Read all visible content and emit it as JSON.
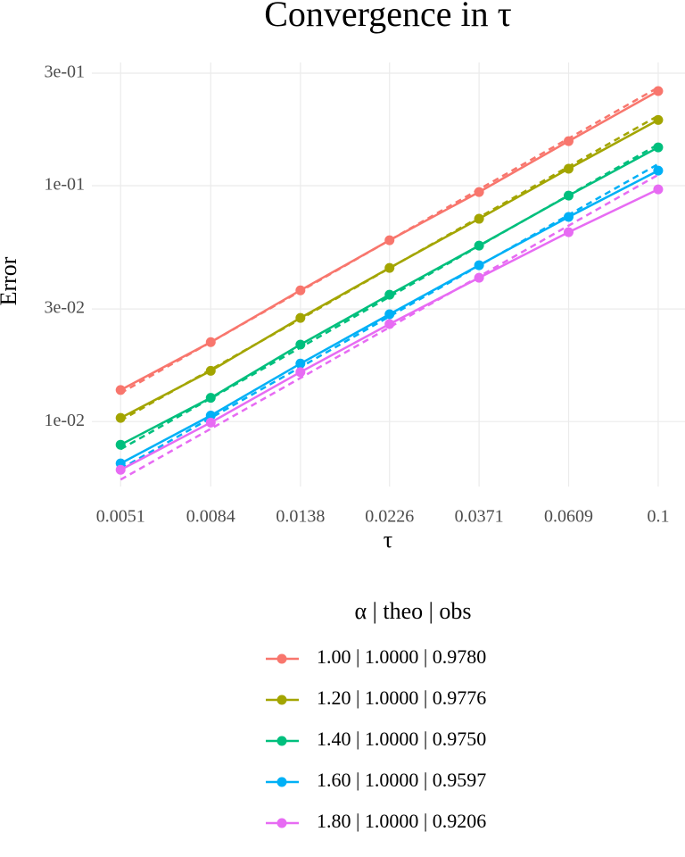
{
  "chart_data": {
    "type": "line",
    "title": "Convergence in τ",
    "x_label": "τ",
    "y_label": "Error",
    "x": [
      0.0051,
      0.0084,
      0.0138,
      0.0226,
      0.0371,
      0.0609,
      0.1
    ],
    "xscale": "log",
    "yscale": "log",
    "xlim": [
      0.00435,
      0.116
    ],
    "ylim": [
      0.0053,
      0.333
    ],
    "xticks": [
      0.0051,
      0.0084,
      0.0138,
      0.0226,
      0.0371,
      0.0609,
      0.1
    ],
    "yticks": [
      {
        "value": 0.01,
        "label": "1e-02"
      },
      {
        "value": 0.03,
        "label": "3e-02"
      },
      {
        "value": 0.1,
        "label": "1e-01"
      },
      {
        "value": 0.3,
        "label": "3e-01"
      }
    ],
    "grid": true,
    "theo_dash": "7 5",
    "legend_title": "α  | theo  | obs",
    "series": [
      {
        "name": "1.00 | 1.0000 | 0.9780",
        "color": "#F8766D",
        "values": [
          0.0136,
          0.0217,
          0.036,
          0.0587,
          0.094,
          0.1545,
          0.252
        ],
        "theo_values": [
          0.0132,
          0.0217,
          0.0357,
          0.0587,
          0.0965,
          0.1586,
          0.261
        ]
      },
      {
        "name": "1.20 | 1.0000 | 0.9776",
        "color": "#A3A500",
        "values": [
          0.01036,
          0.0164,
          0.0275,
          0.0448,
          0.0724,
          0.118,
          0.19
        ],
        "theo_values": [
          0.0101,
          0.0166,
          0.0272,
          0.0447,
          0.0734,
          0.1205,
          0.198
        ]
      },
      {
        "name": "1.40 | 1.0000 | 0.9750",
        "color": "#00BF7D",
        "values": [
          0.00797,
          0.0126,
          0.0212,
          0.0345,
          0.0557,
          0.0908,
          0.1454
        ],
        "theo_values": [
          0.00763,
          0.01253,
          0.0206,
          0.0338,
          0.0555,
          0.0911,
          0.1496
        ]
      },
      {
        "name": "1.60 | 1.0000 | 0.9597",
        "color": "#00B0F6",
        "values": [
          0.00664,
          0.0106,
          0.0176,
          0.0285,
          0.046,
          0.0737,
          0.1159
        ],
        "theo_values": [
          0.0063,
          0.01035,
          0.017,
          0.0279,
          0.0458,
          0.0752,
          0.1235
        ]
      },
      {
        "name": "1.80 | 1.0000 | 0.9206",
        "color": "#E76BF3",
        "values": [
          0.00624,
          0.0099,
          0.0162,
          0.0259,
          0.0407,
          0.0635,
          0.0965
        ],
        "theo_values": [
          0.00567,
          0.00931,
          0.01529,
          0.0251,
          0.0412,
          0.0677,
          0.1112
        ]
      }
    ]
  }
}
